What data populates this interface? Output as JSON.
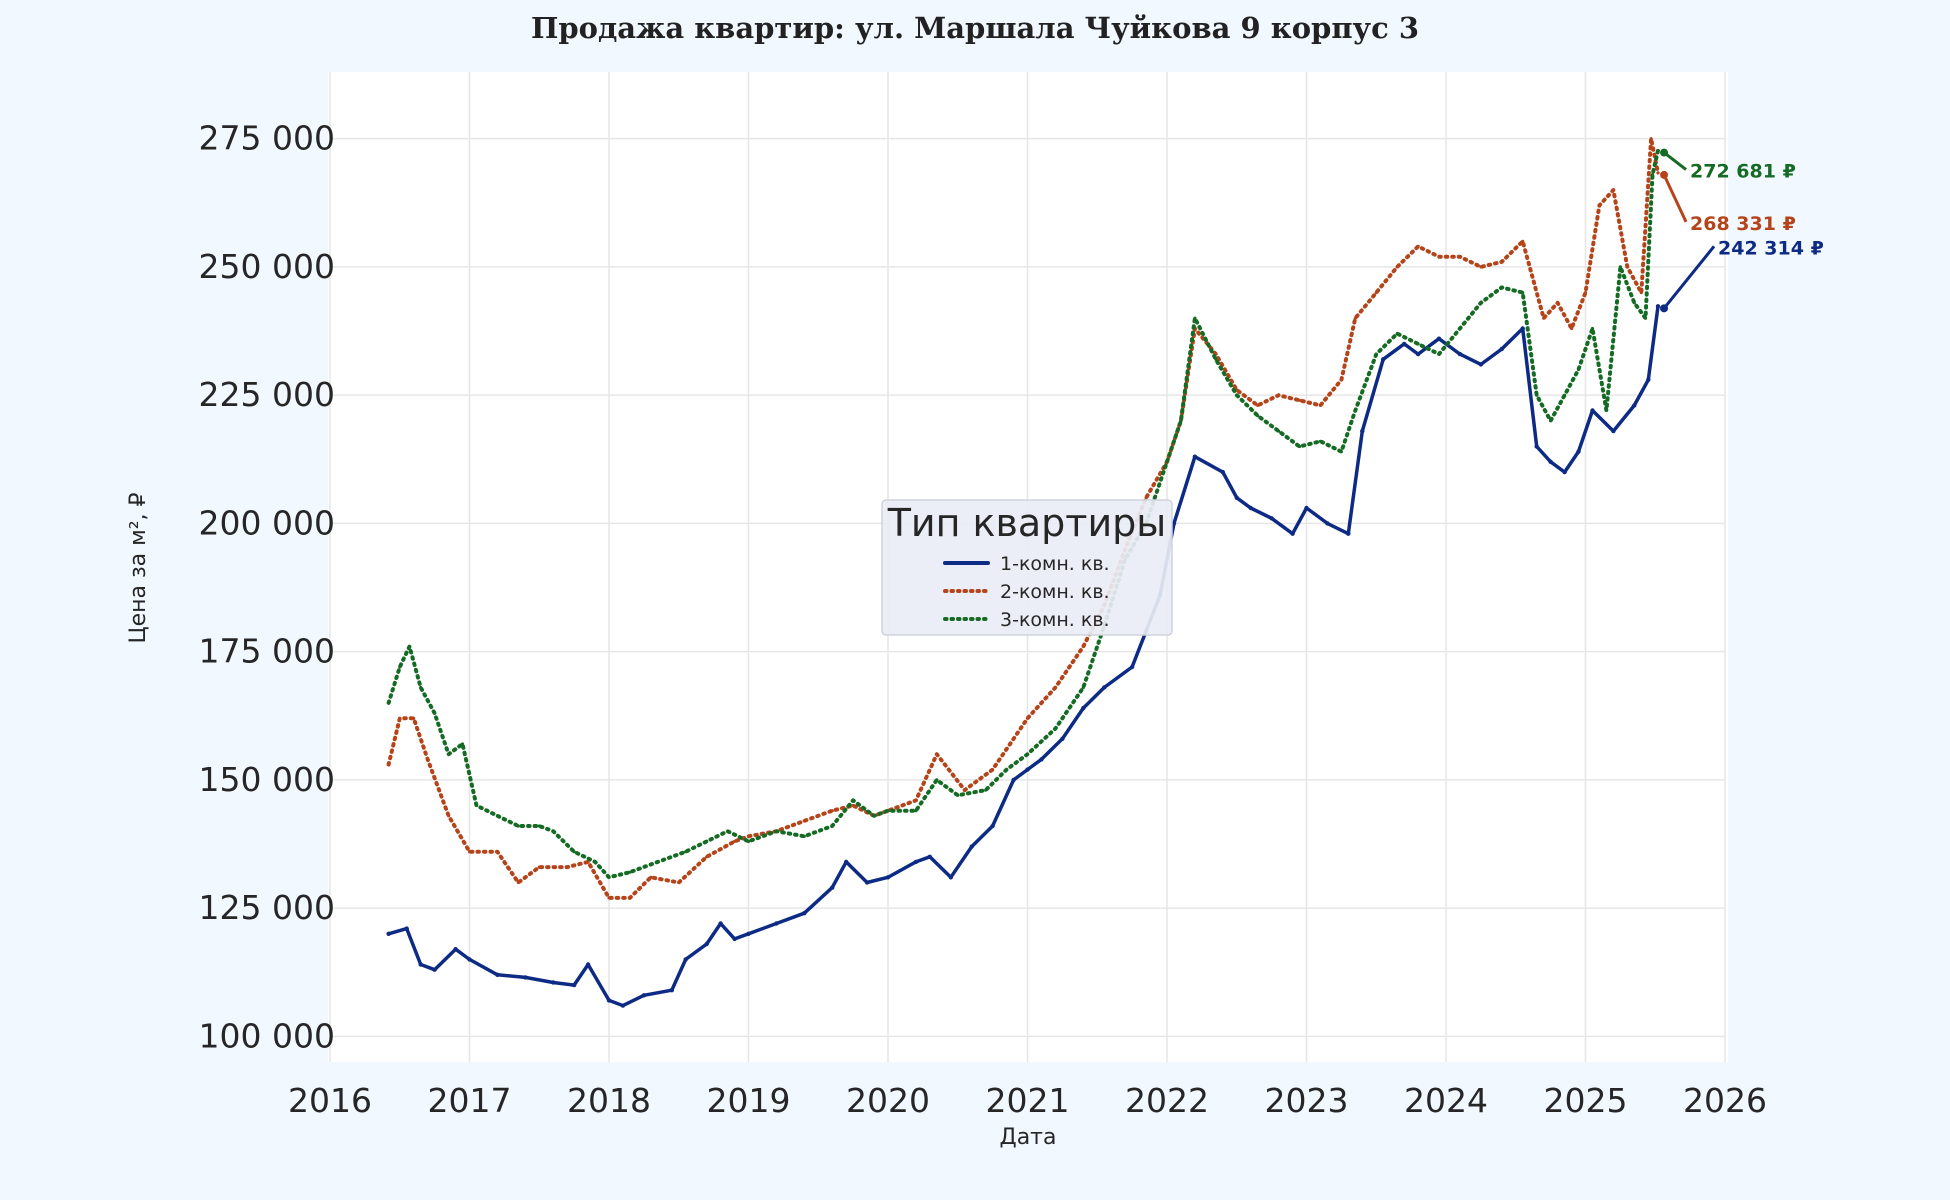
{
  "chart_data": {
    "type": "line",
    "title": "Продажа квартир: ул. Маршала Чуйкова 9 корпус 3",
    "xlabel": "Дата",
    "ylabel": "Цена за м², ₽",
    "xlim": [
      2016,
      2026
    ],
    "ylim": [
      95000,
      288000
    ],
    "x_ticks": [
      2016,
      2017,
      2018,
      2019,
      2020,
      2021,
      2022,
      2023,
      2024,
      2025,
      2026
    ],
    "y_ticks": [
      100000,
      125000,
      150000,
      175000,
      200000,
      225000,
      250000,
      275000
    ],
    "y_tick_labels": [
      "100 000",
      "125 000",
      "150 000",
      "175 000",
      "200 000",
      "225 000",
      "250 000",
      "275 000"
    ],
    "grid": true,
    "legend": {
      "title": "Тип квартиры",
      "placement": "center"
    },
    "series": [
      {
        "name": "1-комн. кв.",
        "color": "#0d2a85",
        "style": "solid",
        "x": [
          2016.42,
          2016.55,
          2016.65,
          2016.75,
          2016.9,
          2017.0,
          2017.2,
          2017.4,
          2017.6,
          2017.75,
          2017.85,
          2018.0,
          2018.1,
          2018.25,
          2018.45,
          2018.55,
          2018.7,
          2018.8,
          2018.9,
          2019.0,
          2019.2,
          2019.4,
          2019.6,
          2019.7,
          2019.85,
          2020.0,
          2020.2,
          2020.3,
          2020.45,
          2020.6,
          2020.75,
          2020.9,
          2021.0,
          2021.1,
          2021.25,
          2021.4,
          2021.55,
          2021.75,
          2021.85,
          2021.95,
          2022.05,
          2022.2,
          2022.4,
          2022.5,
          2022.6,
          2022.75,
          2022.9,
          2023.0,
          2023.15,
          2023.3,
          2023.4,
          2023.55,
          2023.7,
          2023.8,
          2023.95,
          2024.1,
          2024.25,
          2024.4,
          2024.55,
          2024.65,
          2024.75,
          2024.85,
          2024.95,
          2025.05,
          2025.2,
          2025.35,
          2025.45,
          2025.52
        ],
        "values": [
          120000,
          121000,
          114000,
          113000,
          117000,
          115000,
          112000,
          111500,
          110500,
          110000,
          114000,
          107000,
          106000,
          108000,
          109000,
          115000,
          118000,
          122000,
          119000,
          120000,
          122000,
          124000,
          129000,
          134000,
          130000,
          131000,
          134000,
          135000,
          131000,
          137000,
          141000,
          150000,
          152000,
          154000,
          158000,
          164000,
          168000,
          172000,
          179000,
          186000,
          200000,
          213000,
          210000,
          205000,
          203000,
          201000,
          198000,
          203000,
          200000,
          198000,
          218000,
          232000,
          235000,
          233000,
          236000,
          233000,
          231000,
          234000,
          238000,
          215000,
          212000,
          210000,
          214000,
          222000,
          218000,
          223000,
          228000,
          242314
        ]
      },
      {
        "name": "2-комн. кв.",
        "color": "#b5441b",
        "style": "dotted",
        "x": [
          2016.42,
          2016.5,
          2016.6,
          2016.7,
          2016.85,
          2017.0,
          2017.2,
          2017.35,
          2017.5,
          2017.7,
          2017.85,
          2018.0,
          2018.15,
          2018.3,
          2018.5,
          2018.7,
          2018.9,
          2019.0,
          2019.2,
          2019.4,
          2019.6,
          2019.75,
          2019.9,
          2020.0,
          2020.2,
          2020.35,
          2020.55,
          2020.75,
          2020.9,
          2021.0,
          2021.2,
          2021.4,
          2021.55,
          2021.7,
          2021.85,
          2022.0,
          2022.1,
          2022.2,
          2022.35,
          2022.5,
          2022.65,
          2022.8,
          2022.95,
          2023.1,
          2023.25,
          2023.35,
          2023.5,
          2023.65,
          2023.8,
          2023.95,
          2024.1,
          2024.25,
          2024.4,
          2024.55,
          2024.7,
          2024.8,
          2024.9,
          2025.0,
          2025.1,
          2025.2,
          2025.3,
          2025.4,
          2025.47,
          2025.52
        ],
        "values": [
          153000,
          162000,
          162000,
          154000,
          143000,
          136000,
          136000,
          130000,
          133000,
          133000,
          134000,
          127000,
          127000,
          131000,
          130000,
          135000,
          138000,
          139000,
          140000,
          142000,
          144000,
          145000,
          143000,
          144000,
          146000,
          155000,
          148000,
          152000,
          158000,
          162000,
          168000,
          176000,
          184000,
          195000,
          205000,
          212000,
          220000,
          238000,
          233000,
          226000,
          223000,
          225000,
          224000,
          223000,
          228000,
          240000,
          245000,
          250000,
          254000,
          252000,
          252000,
          250000,
          251000,
          255000,
          240000,
          243000,
          238000,
          245000,
          262000,
          265000,
          250000,
          245000,
          275000,
          268331
        ]
      },
      {
        "name": "3-комн. кв.",
        "color": "#166b24",
        "style": "dotted",
        "x": [
          2016.42,
          2016.5,
          2016.57,
          2016.65,
          2016.75,
          2016.85,
          2016.95,
          2017.05,
          2017.2,
          2017.35,
          2017.5,
          2017.6,
          2017.75,
          2017.9,
          2018.0,
          2018.15,
          2018.35,
          2018.55,
          2018.7,
          2018.85,
          2019.0,
          2019.2,
          2019.4,
          2019.6,
          2019.75,
          2019.9,
          2020.0,
          2020.2,
          2020.35,
          2020.5,
          2020.7,
          2020.85,
          2021.0,
          2021.2,
          2021.4,
          2021.55,
          2021.7,
          2021.85,
          2022.0,
          2022.1,
          2022.2,
          2022.35,
          2022.5,
          2022.65,
          2022.8,
          2022.95,
          2023.1,
          2023.25,
          2023.35,
          2023.5,
          2023.65,
          2023.8,
          2023.95,
          2024.1,
          2024.25,
          2024.4,
          2024.55,
          2024.65,
          2024.75,
          2024.85,
          2024.95,
          2025.05,
          2025.15,
          2025.25,
          2025.35,
          2025.43,
          2025.48,
          2025.52
        ],
        "values": [
          165000,
          172000,
          176000,
          168000,
          163000,
          155000,
          157000,
          145000,
          143000,
          141000,
          141000,
          140000,
          136000,
          134000,
          131000,
          132000,
          134000,
          136000,
          138000,
          140000,
          138000,
          140000,
          139000,
          141000,
          146000,
          143000,
          144000,
          144000,
          150000,
          147000,
          148000,
          152000,
          155000,
          160000,
          168000,
          180000,
          193000,
          200000,
          212000,
          220000,
          240000,
          232000,
          225000,
          221000,
          218000,
          215000,
          216000,
          214000,
          222000,
          233000,
          237000,
          235000,
          233000,
          238000,
          243000,
          246000,
          245000,
          225000,
          220000,
          225000,
          230000,
          238000,
          222000,
          250000,
          243000,
          240000,
          268000,
          272681
        ]
      }
    ],
    "annotations": [
      {
        "text": "272 681 ₽",
        "series": "3-комн. кв.",
        "color": "#166b24"
      },
      {
        "text": "268 331 ₽",
        "series": "2-комн. кв.",
        "color": "#b5441b"
      },
      {
        "text": "242 314 ₽",
        "series": "1-комн. кв.",
        "color": "#0d2a85"
      }
    ]
  }
}
